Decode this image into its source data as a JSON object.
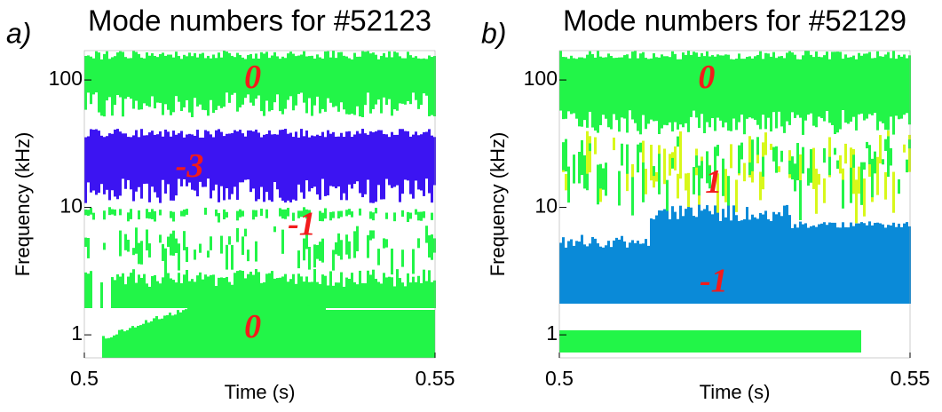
{
  "chart_data": [
    {
      "type": "spectrogram",
      "panel_label": "a)",
      "title": "Mode numbers for #52123",
      "xlabel": "Time (s)",
      "ylabel": "Frequency (kHz)",
      "xlim": [
        0.5,
        0.55
      ],
      "xticks": [
        0.5,
        0.55
      ],
      "ylim": [
        0.66,
        170
      ],
      "yticks": [
        1,
        10,
        100
      ],
      "yscale": "log",
      "annotations": [
        {
          "text": "0",
          "x": 0.524,
          "y": 100
        },
        {
          "text": "-3",
          "x": 0.515,
          "y": 20
        },
        {
          "text": "-1",
          "x": 0.531,
          "y": 7
        },
        {
          "text": "0",
          "x": 0.524,
          "y": 1.1
        }
      ]
    },
    {
      "type": "spectrogram",
      "panel_label": "b)",
      "title": "Mode numbers for #52129",
      "xlabel": "Time (s)",
      "ylabel": "Frequency (kHz)",
      "xlim": [
        0.5,
        0.55
      ],
      "xticks": [
        0.5,
        0.55
      ],
      "ylim": [
        0.66,
        170
      ],
      "yticks": [
        1,
        10,
        100
      ],
      "yscale": "log",
      "annotations": [
        {
          "text": "0",
          "x": 0.521,
          "y": 100
        },
        {
          "text": "1",
          "x": 0.522,
          "y": 15
        },
        {
          "text": "-1",
          "x": 0.522,
          "y": 2.5
        }
      ]
    }
  ]
}
